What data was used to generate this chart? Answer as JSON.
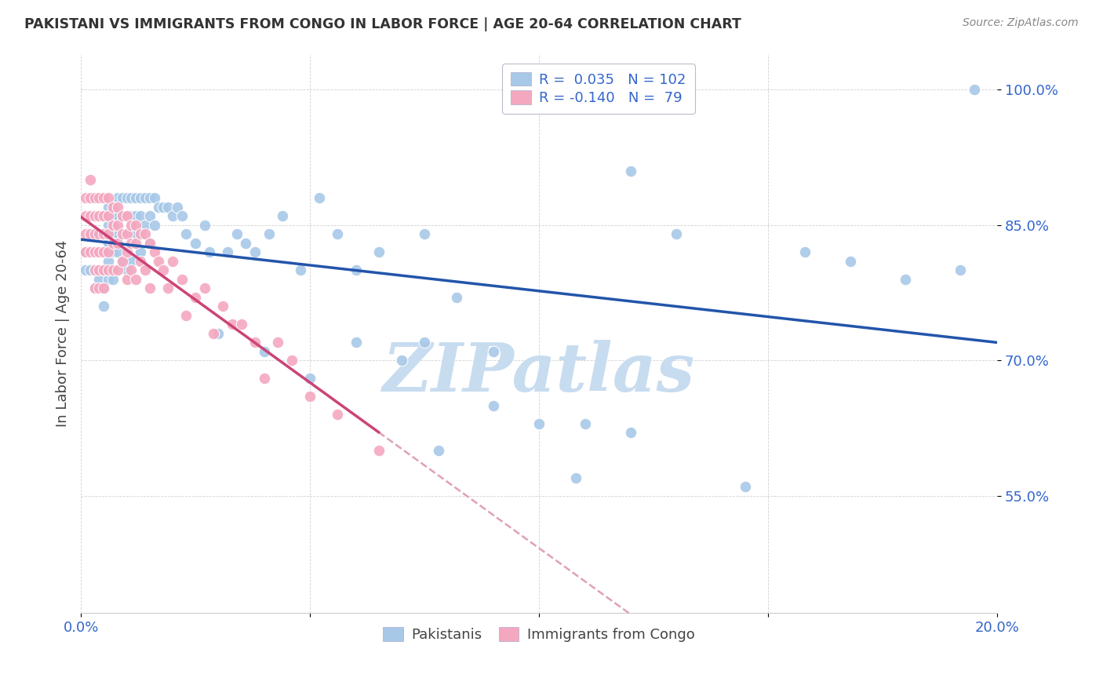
{
  "title": "PAKISTANI VS IMMIGRANTS FROM CONGO IN LABOR FORCE | AGE 20-64 CORRELATION CHART",
  "source": "Source: ZipAtlas.com",
  "ylabel": "In Labor Force | Age 20-64",
  "xlim": [
    0.0,
    0.2
  ],
  "ylim": [
    0.42,
    1.04
  ],
  "ytick_positions": [
    0.55,
    0.7,
    0.85,
    1.0
  ],
  "ytick_labels": [
    "55.0%",
    "70.0%",
    "85.0%",
    "100.0%"
  ],
  "pakistanis_R": 0.035,
  "pakistanis_N": 102,
  "congo_R": -0.14,
  "congo_N": 79,
  "blue_color": "#A8C8E8",
  "pink_color": "#F4A8C0",
  "blue_line_color": "#2255AA",
  "pink_line_color": "#CC4477",
  "pink_dash_color": "#E0A0B8",
  "axis_color": "#3366CC",
  "watermark": "ZIPatlas",
  "watermark_color": "#C8DCF0",
  "background_color": "#FFFFFF",
  "pakistanis_x": [
    0.001,
    0.001,
    0.002,
    0.002,
    0.002,
    0.003,
    0.003,
    0.003,
    0.003,
    0.004,
    0.004,
    0.004,
    0.004,
    0.005,
    0.005,
    0.005,
    0.005,
    0.005,
    0.005,
    0.006,
    0.006,
    0.006,
    0.006,
    0.006,
    0.007,
    0.007,
    0.007,
    0.007,
    0.007,
    0.008,
    0.008,
    0.008,
    0.008,
    0.009,
    0.009,
    0.009,
    0.009,
    0.01,
    0.01,
    0.01,
    0.01,
    0.011,
    0.011,
    0.011,
    0.011,
    0.012,
    0.012,
    0.012,
    0.013,
    0.013,
    0.013,
    0.014,
    0.014,
    0.015,
    0.015,
    0.015,
    0.016,
    0.016,
    0.017,
    0.018,
    0.019,
    0.02,
    0.021,
    0.022,
    0.023,
    0.025,
    0.027,
    0.028,
    0.03,
    0.032,
    0.034,
    0.036,
    0.038,
    0.041,
    0.044,
    0.048,
    0.052,
    0.056,
    0.06,
    0.065,
    0.07,
    0.075,
    0.082,
    0.09,
    0.1,
    0.11,
    0.12,
    0.13,
    0.145,
    0.158,
    0.168,
    0.18,
    0.192,
    0.06,
    0.075,
    0.09,
    0.108,
    0.12,
    0.078,
    0.05,
    0.04,
    0.195
  ],
  "pakistanis_y": [
    0.8,
    0.82,
    0.8,
    0.84,
    0.82,
    0.84,
    0.8,
    0.82,
    0.78,
    0.84,
    0.82,
    0.8,
    0.79,
    0.86,
    0.84,
    0.82,
    0.8,
    0.78,
    0.76,
    0.87,
    0.85,
    0.83,
    0.81,
    0.79,
    0.87,
    0.86,
    0.84,
    0.82,
    0.79,
    0.88,
    0.86,
    0.84,
    0.82,
    0.88,
    0.86,
    0.84,
    0.81,
    0.88,
    0.86,
    0.84,
    0.8,
    0.88,
    0.86,
    0.84,
    0.81,
    0.88,
    0.86,
    0.84,
    0.88,
    0.86,
    0.82,
    0.88,
    0.85,
    0.88,
    0.86,
    0.83,
    0.88,
    0.85,
    0.87,
    0.87,
    0.87,
    0.86,
    0.87,
    0.86,
    0.84,
    0.83,
    0.85,
    0.82,
    0.73,
    0.82,
    0.84,
    0.83,
    0.82,
    0.84,
    0.86,
    0.8,
    0.88,
    0.84,
    0.72,
    0.82,
    0.7,
    0.84,
    0.77,
    0.71,
    0.63,
    0.63,
    0.62,
    0.84,
    0.56,
    0.82,
    0.81,
    0.79,
    0.8,
    0.8,
    0.72,
    0.65,
    0.57,
    0.91,
    0.6,
    0.68,
    0.71,
    1.0
  ],
  "congo_x": [
    0.001,
    0.001,
    0.001,
    0.001,
    0.002,
    0.002,
    0.002,
    0.002,
    0.002,
    0.003,
    0.003,
    0.003,
    0.003,
    0.003,
    0.003,
    0.004,
    0.004,
    0.004,
    0.004,
    0.004,
    0.004,
    0.005,
    0.005,
    0.005,
    0.005,
    0.005,
    0.005,
    0.006,
    0.006,
    0.006,
    0.006,
    0.006,
    0.007,
    0.007,
    0.007,
    0.007,
    0.008,
    0.008,
    0.008,
    0.008,
    0.009,
    0.009,
    0.009,
    0.01,
    0.01,
    0.01,
    0.01,
    0.011,
    0.011,
    0.011,
    0.012,
    0.012,
    0.012,
    0.013,
    0.013,
    0.014,
    0.014,
    0.015,
    0.015,
    0.016,
    0.017,
    0.018,
    0.019,
    0.02,
    0.022,
    0.023,
    0.025,
    0.027,
    0.029,
    0.031,
    0.033,
    0.035,
    0.038,
    0.04,
    0.043,
    0.046,
    0.05,
    0.056,
    0.065
  ],
  "congo_y": [
    0.88,
    0.86,
    0.84,
    0.82,
    0.9,
    0.88,
    0.86,
    0.84,
    0.82,
    0.88,
    0.86,
    0.84,
    0.82,
    0.8,
    0.78,
    0.88,
    0.86,
    0.84,
    0.82,
    0.8,
    0.78,
    0.88,
    0.86,
    0.84,
    0.82,
    0.8,
    0.78,
    0.88,
    0.86,
    0.84,
    0.82,
    0.8,
    0.87,
    0.85,
    0.83,
    0.8,
    0.87,
    0.85,
    0.83,
    0.8,
    0.86,
    0.84,
    0.81,
    0.86,
    0.84,
    0.82,
    0.79,
    0.85,
    0.83,
    0.8,
    0.85,
    0.83,
    0.79,
    0.84,
    0.81,
    0.84,
    0.8,
    0.83,
    0.78,
    0.82,
    0.81,
    0.8,
    0.78,
    0.81,
    0.79,
    0.75,
    0.77,
    0.78,
    0.73,
    0.76,
    0.74,
    0.74,
    0.72,
    0.68,
    0.72,
    0.7,
    0.66,
    0.64,
    0.6
  ]
}
